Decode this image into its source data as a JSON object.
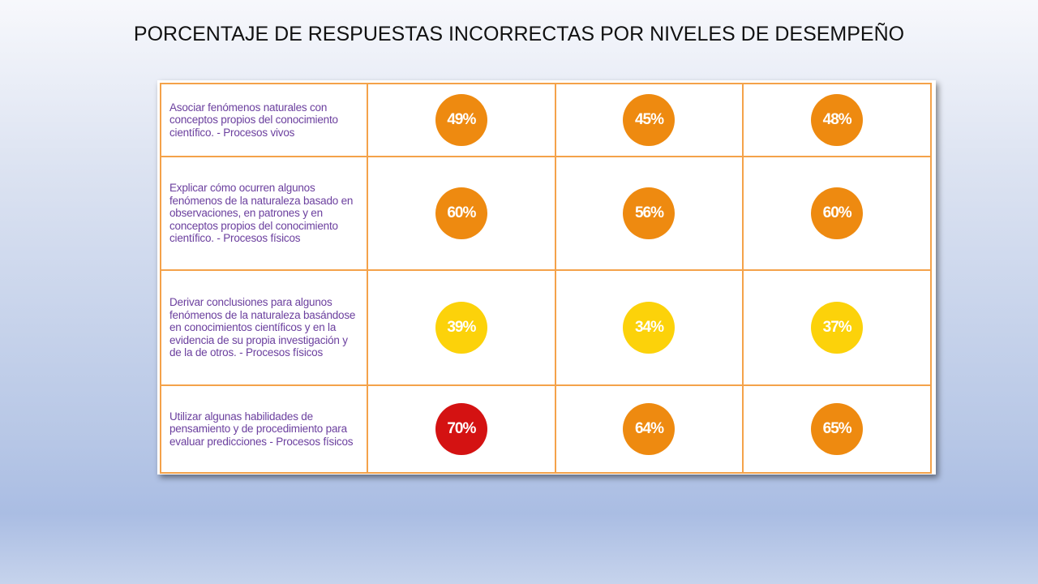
{
  "slide": {
    "title": "PORCENTAJE DE RESPUESTAS INCORRECTAS  POR NIVELES DE DESEMPEÑO"
  },
  "colors": {
    "orange": "#ee8a10",
    "yellow": "#fcd20a",
    "red": "#d41212",
    "grid_border": "#f4a24a",
    "description_text": "#6b3f9e"
  },
  "table": {
    "rows": [
      {
        "description": "Asociar fenómenos naturales con conceptos propios del conocimiento científico. - Procesos vivos",
        "values": [
          {
            "label": "49%",
            "color": "orange"
          },
          {
            "label": "45%",
            "color": "orange"
          },
          {
            "label": "48%",
            "color": "orange"
          }
        ]
      },
      {
        "description": "Explicar cómo ocurren algunos fenómenos de la naturaleza basado en observaciones, en patrones y en conceptos propios del conocimiento científico. - Procesos físicos",
        "values": [
          {
            "label": "60%",
            "color": "orange"
          },
          {
            "label": "56%",
            "color": "orange"
          },
          {
            "label": "60%",
            "color": "orange"
          }
        ]
      },
      {
        "description": "Derivar conclusiones para algunos fenómenos de la naturaleza basándose en conocimientos científicos y en la evidencia de su propia investigación y de la de otros. - Procesos físicos",
        "values": [
          {
            "label": "39%",
            "color": "yellow"
          },
          {
            "label": "34%",
            "color": "yellow"
          },
          {
            "label": "37%",
            "color": "yellow"
          }
        ]
      },
      {
        "description": "Utilizar algunas habilidades de pensamiento y de procedimiento para  evaluar predicciones - Procesos físicos",
        "values": [
          {
            "label": "70%",
            "color": "red"
          },
          {
            "label": "64%",
            "color": "orange"
          },
          {
            "label": "65%",
            "color": "orange"
          }
        ]
      }
    ]
  }
}
